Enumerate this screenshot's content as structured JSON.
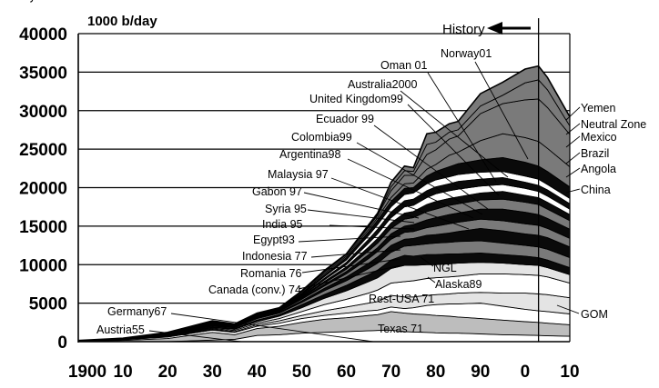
{
  "chart_data": {
    "type": "area",
    "title": "",
    "ylabel": "1000 b/day",
    "xlabel": "",
    "xlim": [
      1900,
      2010
    ],
    "ylim": [
      0,
      40000
    ],
    "x_tick_labels": [
      "1900",
      "10",
      "20",
      "30",
      "40",
      "50",
      "60",
      "70",
      "80",
      "90",
      "0",
      "10"
    ],
    "y_tick_labels": [
      "0",
      "5000",
      "10000",
      "15000",
      "20000",
      "25000",
      "30000",
      "35000",
      "40000"
    ],
    "history_label": "History",
    "history_divider_year": 2003,
    "colors": {
      "dark": "#7a7a7a",
      "black": "#0a0a0a",
      "light": "#e4e4e4",
      "white": "#ffffff",
      "mid": "#bdbdbd"
    },
    "x": [
      1900,
      1910,
      1920,
      1930,
      1935,
      1940,
      1945,
      1950,
      1955,
      1960,
      1965,
      1967,
      1970,
      1973,
      1975,
      1978,
      1980,
      1983,
      1985,
      1990,
      1995,
      2000,
      2003,
      2005,
      2010
    ],
    "total": [
      150,
      450,
      1200,
      2700,
      2300,
      3700,
      4400,
      6600,
      9200,
      11400,
      15200,
      16700,
      20700,
      22800,
      22600,
      27000,
      27200,
      28300,
      28600,
      32200,
      33700,
      35400,
      35800,
      34300,
      29200
    ],
    "boundaries": [
      {
        "name": "Texas 71",
        "values": [
          0,
          0,
          0,
          200,
          300,
          800,
          900,
          1100,
          1200,
          1300,
          1400,
          1450,
          1500,
          1300,
          1250,
          1200,
          1150,
          1100,
          1100,
          1000,
          900,
          850,
          800,
          760,
          700
        ]
      },
      {
        "name": "Rest-USA 71",
        "values": [
          40,
          150,
          400,
          1200,
          900,
          1700,
          2000,
          2500,
          2900,
          3100,
          3400,
          3500,
          3900,
          3700,
          3600,
          3500,
          3400,
          3300,
          3200,
          3000,
          2800,
          2600,
          2500,
          2400,
          2200
        ]
      },
      {
        "name": "Alaska 89",
        "values": [
          60,
          250,
          600,
          1500,
          1200,
          2000,
          2400,
          3000,
          3400,
          3700,
          4000,
          4100,
          4500,
          4300,
          4400,
          4700,
          4800,
          4900,
          4900,
          5000,
          4600,
          4200,
          4000,
          3900,
          3600
        ]
      },
      {
        "name": "GOM",
        "values": [
          70,
          280,
          680,
          1600,
          1300,
          2200,
          2700,
          3400,
          4000,
          4500,
          5000,
          5200,
          6000,
          5800,
          5800,
          6000,
          6100,
          6200,
          6300,
          6400,
          6300,
          6300,
          6200,
          6100,
          5700
        ]
      },
      {
        "name": "NGL",
        "values": [
          80,
          300,
          750,
          1700,
          1450,
          2400,
          3000,
          3900,
          4800,
          5500,
          6300,
          6700,
          7600,
          7800,
          7900,
          8200,
          8300,
          8400,
          8500,
          8800,
          8800,
          8700,
          8600,
          8400,
          7600
        ]
      },
      {
        "name": "Canada (conv.) 74",
        "values": [
          90,
          320,
          800,
          1800,
          1600,
          2600,
          3300,
          4400,
          5600,
          6600,
          7800,
          8300,
          9500,
          9900,
          9900,
          10000,
          10000,
          10100,
          10200,
          10300,
          10200,
          10000,
          9900,
          9600,
          8700
        ]
      },
      {
        "name": "Romania 76",
        "values": [
          100,
          340,
          850,
          1900,
          1700,
          2800,
          3500,
          4800,
          6100,
          7300,
          8700,
          9300,
          10600,
          11200,
          11100,
          11300,
          11300,
          11400,
          11400,
          11500,
          11300,
          11100,
          10900,
          10600,
          9600
        ]
      },
      {
        "name": "Indonesia 77",
        "values": [
          110,
          360,
          900,
          2000,
          1800,
          3000,
          3700,
          5100,
          6600,
          7900,
          9500,
          10200,
          11600,
          12400,
          12500,
          12700,
          12800,
          12900,
          13000,
          13100,
          12800,
          12500,
          12300,
          12000,
          10900
        ]
      },
      {
        "name": "Egypt 93",
        "values": [
          115,
          370,
          930,
          2100,
          1900,
          3100,
          3800,
          5300,
          6900,
          8400,
          10200,
          11000,
          12500,
          13300,
          13400,
          13800,
          13900,
          14100,
          14300,
          14700,
          14400,
          14000,
          13800,
          13500,
          12300
        ]
      },
      {
        "name": "India 95",
        "values": [
          120,
          380,
          960,
          2150,
          1950,
          3200,
          3900,
          5500,
          7200,
          8800,
          10800,
          11700,
          13300,
          14200,
          14300,
          14800,
          15000,
          15300,
          15500,
          15900,
          15700,
          15300,
          15100,
          14700,
          13400
        ]
      },
      {
        "name": "Syria 95",
        "values": [
          122,
          385,
          980,
          2200,
          2000,
          3250,
          4000,
          5600,
          7400,
          9100,
          11300,
          12200,
          14000,
          15000,
          15200,
          15800,
          16100,
          16500,
          16700,
          17200,
          17200,
          16800,
          16500,
          16000,
          14600
        ]
      },
      {
        "name": "Gabon 97",
        "values": [
          124,
          390,
          1000,
          2250,
          2050,
          3300,
          4050,
          5700,
          7600,
          9400,
          11800,
          12800,
          14700,
          15900,
          16100,
          16900,
          17200,
          17700,
          17900,
          18400,
          18500,
          18100,
          17800,
          17200,
          15700
        ]
      },
      {
        "name": "Malaysia 97",
        "values": [
          126,
          395,
          1020,
          2300,
          2080,
          3350,
          4100,
          5800,
          7800,
          9700,
          12300,
          13400,
          15400,
          16700,
          16900,
          17800,
          18200,
          18600,
          18800,
          19300,
          19500,
          19000,
          18700,
          18100,
          16500
        ]
      },
      {
        "name": "Argentina 98",
        "values": [
          128,
          400,
          1040,
          2350,
          2100,
          3400,
          4150,
          5900,
          8000,
          10000,
          12800,
          14000,
          16100,
          17500,
          17700,
          18700,
          19200,
          19600,
          19800,
          20200,
          20400,
          19900,
          19500,
          18900,
          17200
        ]
      },
      {
        "name": "Colombia 99",
        "values": [
          130,
          410,
          1060,
          2400,
          2150,
          3450,
          4200,
          6000,
          8200,
          10300,
          13300,
          14600,
          16800,
          18300,
          18500,
          19600,
          20100,
          20500,
          20800,
          21100,
          21300,
          20700,
          20300,
          19700,
          17900
        ]
      },
      {
        "name": "Ecuador 99",
        "values": [
          132,
          420,
          1080,
          2450,
          2170,
          3500,
          4250,
          6100,
          8400,
          10600,
          13800,
          15200,
          17500,
          19100,
          19300,
          20500,
          21000,
          21400,
          21700,
          22000,
          22100,
          21500,
          21100,
          20400,
          18600
        ]
      },
      {
        "name": "United Kingdom 99",
        "values": [
          134,
          425,
          1100,
          2500,
          2190,
          3550,
          4300,
          6200,
          8600,
          10900,
          14300,
          15800,
          18200,
          19900,
          20000,
          21500,
          22100,
          22700,
          23100,
          23600,
          23900,
          23300,
          22800,
          22100,
          20100
        ]
      },
      {
        "name": "Australia 2000",
        "values": [
          136,
          430,
          1120,
          2550,
          2210,
          3600,
          4350,
          6300,
          8800,
          11100,
          14600,
          16100,
          18700,
          20500,
          20600,
          22400,
          23000,
          24200,
          24600,
          26100,
          27000,
          26500,
          26000,
          25100,
          22700
        ]
      },
      {
        "name": "Oman 01",
        "values": [
          140,
          440,
          1150,
          2600,
          2250,
          3650,
          4380,
          6450,
          9000,
          11300,
          14900,
          16400,
          19600,
          21600,
          21600,
          24300,
          24900,
          26300,
          26700,
          29600,
          30900,
          31400,
          31500,
          30400,
          26900
        ]
      },
      {
        "name": "Norway 01",
        "values": [
          145,
          445,
          1175,
          2650,
          2280,
          3680,
          4390,
          6530,
          9100,
          11350,
          15050,
          16550,
          20100,
          22200,
          22100,
          25600,
          25900,
          27200,
          27500,
          30600,
          32000,
          33600,
          34000,
          32700,
          28000
        ]
      }
    ],
    "bands": [
      {
        "from": "Texas 71",
        "to": "Rest-USA 71",
        "fill": "mid"
      },
      {
        "from": "Alaska 89",
        "to": "GOM",
        "fill": "light"
      },
      {
        "from": "GOM",
        "to": "NGL",
        "fill": "white"
      },
      {
        "from": "NGL",
        "to": "Canada (conv.) 74",
        "fill": "light"
      },
      {
        "from": "Canada (conv.) 74",
        "to": "Romania 76",
        "fill": "black"
      },
      {
        "from": "Romania 76",
        "to": "Indonesia 77",
        "fill": "dark"
      },
      {
        "from": "Indonesia 77",
        "to": "Egypt 93",
        "fill": "black"
      },
      {
        "from": "Egypt 93",
        "to": "India 95",
        "fill": "dark"
      },
      {
        "from": "India 95",
        "to": "Syria 95",
        "fill": "black"
      },
      {
        "from": "Syria 95",
        "to": "Gabon 97",
        "fill": "dark"
      },
      {
        "from": "Gabon 97",
        "to": "Malaysia 97",
        "fill": "black"
      },
      {
        "from": "Malaysia 97",
        "to": "Argentina 98",
        "fill": "white"
      },
      {
        "from": "Argentina 98",
        "to": "Colombia 99",
        "fill": "black"
      },
      {
        "from": "Colombia 99",
        "to": "Ecuador 99",
        "fill": "white"
      },
      {
        "from": "Ecuador 99",
        "to": "United Kingdom 99",
        "fill": "black"
      },
      {
        "from": "United Kingdom 99",
        "to": "Australia 2000",
        "fill": "dark"
      },
      {
        "from": "Australia 2000",
        "to": "Oman 01",
        "fill": "dark"
      },
      {
        "from": "Oman 01",
        "to": "Norway 01",
        "fill": "dark"
      },
      {
        "from": "Norway 01",
        "to": "total",
        "fill": "dark"
      }
    ],
    "annotations": [
      {
        "name": "history",
        "text": "History"
      },
      {
        "name": "oman",
        "text": "Oman 01"
      },
      {
        "name": "norway",
        "text": "Norway01"
      },
      {
        "name": "australia",
        "text": "Australia2000"
      },
      {
        "name": "united-kingdom",
        "text": "United Kingdom99"
      },
      {
        "name": "ecuador",
        "text": "Ecuador 99"
      },
      {
        "name": "colombia",
        "text": "Colombia99"
      },
      {
        "name": "argentina",
        "text": "Argentina98"
      },
      {
        "name": "malaysia",
        "text": "Malaysia 97"
      },
      {
        "name": "gabon",
        "text": "Gabon 97"
      },
      {
        "name": "syria",
        "text": "Syria 95"
      },
      {
        "name": "india",
        "text": "India 95"
      },
      {
        "name": "egypt",
        "text": "Egypt93"
      },
      {
        "name": "indonesia",
        "text": "Indonesia 77"
      },
      {
        "name": "romania",
        "text": "Romania 76"
      },
      {
        "name": "canada",
        "text": "Canada (conv.) 74"
      },
      {
        "name": "germany",
        "text": "Germany67"
      },
      {
        "name": "austria",
        "text": "Austria55"
      },
      {
        "name": "rest-usa",
        "text": "Rest-USA 71"
      },
      {
        "name": "texas",
        "text": "Texas 71"
      },
      {
        "name": "ngl",
        "text": "NGL"
      },
      {
        "name": "alaska",
        "text": "Alaska89"
      },
      {
        "name": "gom",
        "text": "GOM"
      },
      {
        "name": "yemen",
        "text": "Yemen"
      },
      {
        "name": "neutral-zone",
        "text": "Neutral Zone"
      },
      {
        "name": "mexico",
        "text": "Mexico"
      },
      {
        "name": "brazil",
        "text": "Brazil"
      },
      {
        "name": "angola",
        "text": "Angola"
      },
      {
        "name": "china",
        "text": "China"
      }
    ]
  }
}
